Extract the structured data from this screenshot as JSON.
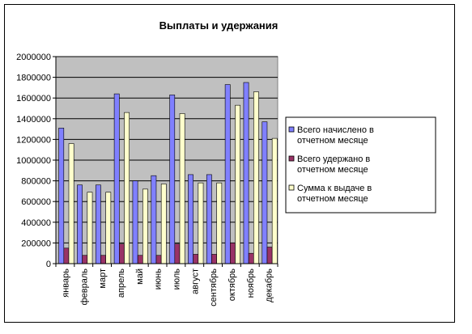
{
  "chart_data": {
    "type": "bar",
    "title": "Выплаты и удержания",
    "categories": [
      "январь",
      "февраль",
      "март",
      "апрель",
      "май",
      "июнь",
      "июль",
      "август",
      "сентябрь",
      "октябрь",
      "ноябрь",
      "декабрь"
    ],
    "series": [
      {
        "name": "Всего начислено в отчетном месяце",
        "color": "#8080ff",
        "values": [
          1310000,
          760000,
          760000,
          1640000,
          800000,
          850000,
          1630000,
          860000,
          860000,
          1730000,
          1750000,
          1370000
        ]
      },
      {
        "name": "Всего удержано в отчетном месяце",
        "color": "#993366",
        "values": [
          150000,
          80000,
          80000,
          190000,
          80000,
          80000,
          190000,
          90000,
          90000,
          200000,
          100000,
          160000
        ]
      },
      {
        "name": "Сумма к выдаче в отчетном месяце",
        "color": "#ffffcc",
        "values": [
          1160000,
          690000,
          690000,
          1460000,
          720000,
          770000,
          1450000,
          780000,
          780000,
          1530000,
          1660000,
          1210000
        ]
      }
    ],
    "yticks": [
      "0",
      "200000",
      "400000",
      "600000",
      "800000",
      "1000000",
      "1200000",
      "1400000",
      "1600000",
      "1800000",
      "2000000"
    ],
    "ylim": [
      0,
      2000000
    ],
    "grid": true,
    "plot_background": "#c0c0c0",
    "legend_position": "right"
  }
}
